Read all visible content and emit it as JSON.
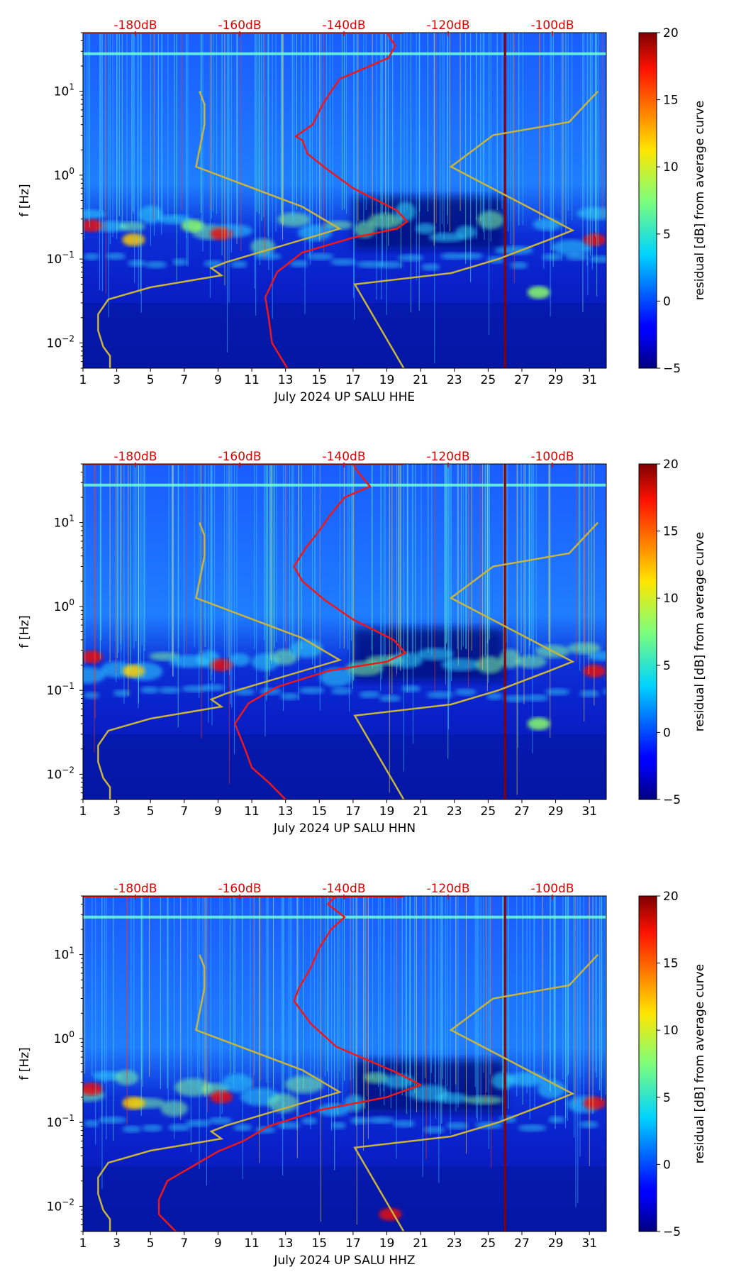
{
  "chart_data": [
    {
      "type": "heatmap",
      "channel": "HHE",
      "xlabel": "July 2024 UP SALU  HHE",
      "ylabel": "f [Hz]",
      "x_ticks": [
        "1",
        "3",
        "5",
        "7",
        "9",
        "11",
        "13",
        "15",
        "17",
        "19",
        "21",
        "23",
        "25",
        "27",
        "29",
        "31"
      ],
      "x_range_days": [
        1,
        32
      ],
      "y_scale": "log",
      "y_range_hz": [
        0.005,
        50
      ],
      "y_ticks": [
        {
          "value": 0.01,
          "base": "10",
          "exp": "−2"
        },
        {
          "value": 0.1,
          "base": "10",
          "exp": "−1"
        },
        {
          "value": 1,
          "base": "10",
          "exp": "0"
        },
        {
          "value": 10,
          "base": "10",
          "exp": "1"
        }
      ],
      "top_axis_labels": [
        "-180dB",
        "-160dB",
        "-140dB",
        "-120dB",
        "-100dB"
      ],
      "colorbar": {
        "label": "residual [dB] from average curve",
        "ticks": [
          "−5",
          "0",
          "5",
          "10",
          "15",
          "20"
        ],
        "range": [
          -5,
          20
        ]
      },
      "dark_red_vertical_line_day": 26,
      "peterson_low_noise": [
        [
          2.6,
          0.005
        ],
        [
          2.6,
          0.007
        ],
        [
          2.2,
          0.009
        ],
        [
          1.9,
          0.014
        ],
        [
          1.9,
          0.022
        ],
        [
          2.5,
          0.033
        ],
        [
          5.0,
          0.046
        ],
        [
          9.2,
          0.064
        ],
        [
          8.6,
          0.078
        ],
        [
          9.5,
          0.092
        ],
        [
          16.2,
          0.23
        ],
        [
          14.0,
          0.42
        ],
        [
          7.7,
          1.26
        ],
        [
          8.2,
          4.0
        ],
        [
          8.2,
          7.0
        ],
        [
          7.9,
          10.0
        ]
      ],
      "peterson_high_noise": [
        [
          20.0,
          0.005
        ],
        [
          17.1,
          0.05
        ],
        [
          22.8,
          0.068
        ],
        [
          25.6,
          0.1
        ],
        [
          28.6,
          0.17
        ],
        [
          30.0,
          0.22
        ],
        [
          22.8,
          1.26
        ],
        [
          25.3,
          3.0
        ],
        [
          29.8,
          4.3
        ],
        [
          31.5,
          10.0
        ]
      ],
      "median_psd_curve": [
        [
          13.1,
          0.005
        ],
        [
          12.2,
          0.01
        ],
        [
          12.0,
          0.02
        ],
        [
          11.8,
          0.035
        ],
        [
          12.5,
          0.07
        ],
        [
          14.0,
          0.12
        ],
        [
          17.0,
          0.18
        ],
        [
          19.6,
          0.23
        ],
        [
          20.2,
          0.28
        ],
        [
          19.6,
          0.38
        ],
        [
          17.0,
          0.7
        ],
        [
          15.4,
          1.2
        ],
        [
          14.3,
          1.8
        ],
        [
          14.0,
          2.6
        ],
        [
          13.6,
          2.9
        ],
        [
          14.6,
          4.0
        ],
        [
          15.2,
          7.0
        ],
        [
          15.7,
          10.0
        ],
        [
          16.2,
          14.0
        ],
        [
          19.1,
          25.0
        ],
        [
          19.5,
          35.0
        ],
        [
          19.0,
          50.0
        ]
      ],
      "heatmap_hotspots": [
        {
          "day": 1.5,
          "freq_hz": 0.25,
          "residual_db": 18
        },
        {
          "day": 4.0,
          "freq_hz": 0.17,
          "residual_db": 16
        },
        {
          "day": 7.5,
          "freq_hz": 0.25,
          "residual_db": 10
        },
        {
          "day": 9.2,
          "freq_hz": 0.2,
          "residual_db": 18
        },
        {
          "day": 31.3,
          "freq_hz": 0.17,
          "residual_db": 18
        },
        {
          "day": 28.0,
          "freq_hz": 0.04,
          "residual_db": 10
        }
      ]
    },
    {
      "type": "heatmap",
      "channel": "HHN",
      "xlabel": "July 2024 UP SALU  HHN",
      "ylabel": "f [Hz]",
      "x_ticks": [
        "1",
        "3",
        "5",
        "7",
        "9",
        "11",
        "13",
        "15",
        "17",
        "19",
        "21",
        "23",
        "25",
        "27",
        "29",
        "31"
      ],
      "x_range_days": [
        1,
        32
      ],
      "y_scale": "log",
      "y_range_hz": [
        0.005,
        50
      ],
      "y_ticks": [
        {
          "value": 0.01,
          "base": "10",
          "exp": "−2"
        },
        {
          "value": 0.1,
          "base": "10",
          "exp": "−1"
        },
        {
          "value": 1,
          "base": "10",
          "exp": "0"
        },
        {
          "value": 10,
          "base": "10",
          "exp": "1"
        }
      ],
      "top_axis_labels": [
        "-180dB",
        "-160dB",
        "-140dB",
        "-120dB",
        "-100dB"
      ],
      "colorbar": {
        "label": "residual [dB] from average curve",
        "ticks": [
          "−5",
          "0",
          "5",
          "10",
          "15",
          "20"
        ],
        "range": [
          -5,
          20
        ]
      },
      "dark_red_vertical_line_day": 26,
      "peterson_low_noise": [
        [
          2.6,
          0.005
        ],
        [
          2.6,
          0.007
        ],
        [
          2.2,
          0.009
        ],
        [
          1.9,
          0.014
        ],
        [
          1.9,
          0.022
        ],
        [
          2.5,
          0.033
        ],
        [
          5.0,
          0.046
        ],
        [
          9.2,
          0.064
        ],
        [
          8.6,
          0.078
        ],
        [
          9.5,
          0.092
        ],
        [
          16.2,
          0.23
        ],
        [
          14.0,
          0.42
        ],
        [
          7.7,
          1.26
        ],
        [
          8.2,
          4.0
        ],
        [
          8.2,
          7.0
        ],
        [
          7.9,
          10.0
        ]
      ],
      "peterson_high_noise": [
        [
          20.0,
          0.005
        ],
        [
          17.1,
          0.05
        ],
        [
          22.8,
          0.068
        ],
        [
          25.6,
          0.1
        ],
        [
          28.6,
          0.17
        ],
        [
          30.0,
          0.22
        ],
        [
          22.8,
          1.26
        ],
        [
          25.3,
          3.0
        ],
        [
          29.8,
          4.3
        ],
        [
          31.5,
          10.0
        ]
      ],
      "median_psd_curve": [
        [
          13.0,
          0.005
        ],
        [
          12.0,
          0.008
        ],
        [
          11.0,
          0.012
        ],
        [
          10.6,
          0.02
        ],
        [
          10.0,
          0.04
        ],
        [
          10.8,
          0.07
        ],
        [
          12.5,
          0.11
        ],
        [
          15.5,
          0.17
        ],
        [
          19.0,
          0.22
        ],
        [
          20.1,
          0.28
        ],
        [
          19.4,
          0.4
        ],
        [
          17.0,
          0.7
        ],
        [
          15.3,
          1.2
        ],
        [
          14.0,
          2.0
        ],
        [
          13.5,
          3.0
        ],
        [
          14.2,
          5.0
        ],
        [
          15.0,
          8.0
        ],
        [
          15.6,
          12.0
        ],
        [
          16.5,
          20.0
        ],
        [
          18.0,
          27.0
        ],
        [
          17.3,
          40.0
        ],
        [
          17.0,
          50.0
        ]
      ],
      "heatmap_hotspots": [
        {
          "day": 1.5,
          "freq_hz": 0.25,
          "residual_db": 18
        },
        {
          "day": 4.0,
          "freq_hz": 0.17,
          "residual_db": 16
        },
        {
          "day": 9.2,
          "freq_hz": 0.2,
          "residual_db": 18
        },
        {
          "day": 31.3,
          "freq_hz": 0.17,
          "residual_db": 18
        },
        {
          "day": 28.0,
          "freq_hz": 0.04,
          "residual_db": 6
        }
      ]
    },
    {
      "type": "heatmap",
      "channel": "HHZ",
      "xlabel": "July 2024 UP SALU  HHZ",
      "ylabel": "f [Hz]",
      "x_ticks": [
        "1",
        "3",
        "5",
        "7",
        "9",
        "11",
        "13",
        "15",
        "17",
        "19",
        "21",
        "23",
        "25",
        "27",
        "29",
        "31"
      ],
      "x_range_days": [
        1,
        32
      ],
      "y_scale": "log",
      "y_range_hz": [
        0.005,
        50
      ],
      "y_ticks": [
        {
          "value": 0.01,
          "base": "10",
          "exp": "−2"
        },
        {
          "value": 0.1,
          "base": "10",
          "exp": "−1"
        },
        {
          "value": 1,
          "base": "10",
          "exp": "0"
        },
        {
          "value": 10,
          "base": "10",
          "exp": "1"
        }
      ],
      "top_axis_labels": [
        "-180dB",
        "-160dB",
        "-140dB",
        "-120dB",
        "-100dB"
      ],
      "colorbar": {
        "label": "residual [dB] from average curve",
        "ticks": [
          "−5",
          "0",
          "5",
          "10",
          "15",
          "20"
        ],
        "range": [
          -5,
          20
        ]
      },
      "dark_red_vertical_line_day": 26,
      "peterson_low_noise": [
        [
          2.6,
          0.005
        ],
        [
          2.6,
          0.007
        ],
        [
          2.2,
          0.009
        ],
        [
          1.9,
          0.014
        ],
        [
          1.9,
          0.022
        ],
        [
          2.5,
          0.033
        ],
        [
          5.0,
          0.046
        ],
        [
          9.2,
          0.064
        ],
        [
          8.6,
          0.078
        ],
        [
          9.5,
          0.092
        ],
        [
          16.2,
          0.23
        ],
        [
          14.0,
          0.42
        ],
        [
          7.7,
          1.26
        ],
        [
          8.2,
          4.0
        ],
        [
          8.2,
          7.0
        ],
        [
          7.9,
          10.0
        ]
      ],
      "peterson_high_noise": [
        [
          20.0,
          0.005
        ],
        [
          17.1,
          0.05
        ],
        [
          22.8,
          0.068
        ],
        [
          25.6,
          0.1
        ],
        [
          28.6,
          0.17
        ],
        [
          30.0,
          0.22
        ],
        [
          22.8,
          1.26
        ],
        [
          25.3,
          3.0
        ],
        [
          29.8,
          4.3
        ],
        [
          31.5,
          10.0
        ]
      ],
      "median_psd_curve": [
        [
          6.5,
          0.005
        ],
        [
          5.5,
          0.008
        ],
        [
          5.5,
          0.012
        ],
        [
          6.0,
          0.02
        ],
        [
          7.5,
          0.03
        ],
        [
          9.0,
          0.045
        ],
        [
          10.5,
          0.06
        ],
        [
          12.0,
          0.09
        ],
        [
          15.0,
          0.14
        ],
        [
          19.0,
          0.2
        ],
        [
          21.0,
          0.28
        ],
        [
          19.5,
          0.4
        ],
        [
          16.0,
          0.8
        ],
        [
          14.5,
          1.5
        ],
        [
          13.5,
          2.8
        ],
        [
          13.8,
          4.0
        ],
        [
          14.5,
          7.0
        ],
        [
          15.0,
          12.0
        ],
        [
          15.7,
          20.0
        ],
        [
          16.5,
          28.0
        ],
        [
          15.5,
          40.0
        ],
        [
          16.0,
          50.0
        ]
      ],
      "heatmap_hotspots": [
        {
          "day": 1.5,
          "freq_hz": 0.25,
          "residual_db": 18
        },
        {
          "day": 4.0,
          "freq_hz": 0.17,
          "residual_db": 14
        },
        {
          "day": 9.2,
          "freq_hz": 0.2,
          "residual_db": 18
        },
        {
          "day": 31.3,
          "freq_hz": 0.17,
          "residual_db": 18
        },
        {
          "day": 19.2,
          "freq_hz": 0.008,
          "residual_db": 18
        }
      ]
    }
  ]
}
